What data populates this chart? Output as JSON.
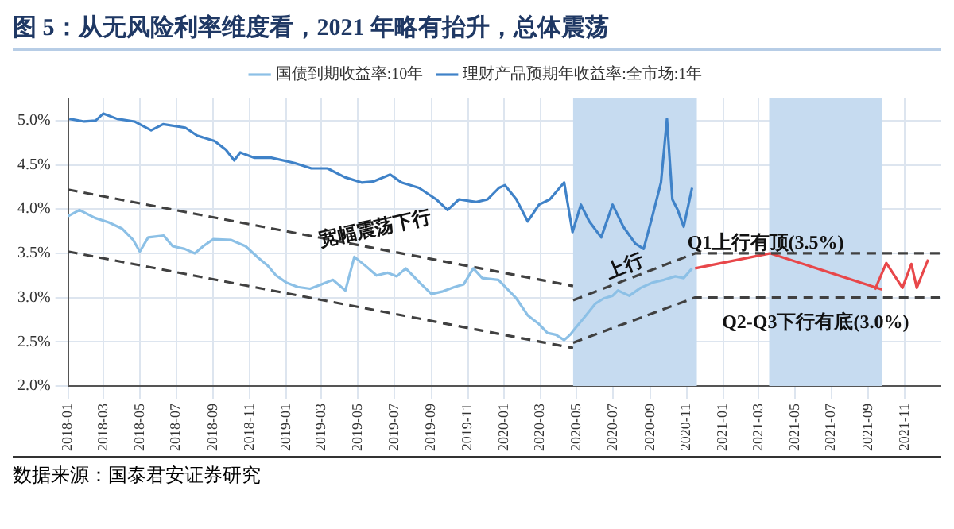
{
  "chart_data": {
    "type": "line",
    "title": "图 5：从无风险利率维度看，2021 年略有抬升，总体震荡",
    "xlim": [
      "2018-01-01",
      "2022-01-01"
    ],
    "xticks": [
      "2018-01",
      "2018-03",
      "2018-05",
      "2018-07",
      "2018-09",
      "2018-11",
      "2019-01",
      "2019-03",
      "2019-05",
      "2019-07",
      "2019-09",
      "2019-11",
      "2020-01",
      "2020-03",
      "2020-05",
      "2020-07",
      "2020-09",
      "2020-11",
      "2021-01",
      "2021-03",
      "2021-05",
      "2021-07",
      "2021-09",
      "2021-11"
    ],
    "ylim": [
      2,
      5.25
    ],
    "yticks": [
      {
        "value": 2,
        "label": "2.0%"
      },
      {
        "value": 2.5,
        "label": "2.5%"
      },
      {
        "value": 3,
        "label": "3.0%"
      },
      {
        "value": 3.5,
        "label": "3.5%"
      },
      {
        "value": 4,
        "label": "4.0%"
      },
      {
        "value": 4.5,
        "label": "4.5%"
      },
      {
        "value": 5,
        "label": "5.0%"
      }
    ],
    "series": [
      {
        "name": "国债到期收益率:10年",
        "color": "#8cc0e6",
        "x": [
          "2018-01-01",
          "2018-01-20",
          "2018-02-15",
          "2018-03-10",
          "2018-04-01",
          "2018-04-20",
          "2018-05-01",
          "2018-05-15",
          "2018-06-10",
          "2018-06-25",
          "2018-07-15",
          "2018-08-01",
          "2018-08-15",
          "2018-09-01",
          "2018-10-01",
          "2018-10-25",
          "2018-11-15",
          "2018-12-01",
          "2018-12-15",
          "2019-01-01",
          "2019-01-20",
          "2019-02-10",
          "2019-03-01",
          "2019-03-20",
          "2019-04-10",
          "2019-04-25",
          "2019-05-15",
          "2019-06-01",
          "2019-06-20",
          "2019-07-05",
          "2019-07-20",
          "2019-08-15",
          "2019-09-01",
          "2019-09-20",
          "2019-10-10",
          "2019-10-25",
          "2019-11-10",
          "2019-11-25",
          "2019-12-22",
          "2020-01-21",
          "2020-02-09",
          "2020-02-28",
          "2020-03-13",
          "2020-03-27",
          "2020-04-10",
          "2020-04-20",
          "2020-04-27",
          "2020-05-13",
          "2020-06-01",
          "2020-06-15",
          "2020-06-30",
          "2020-07-09",
          "2020-07-28",
          "2020-08-16",
          "2020-09-05",
          "2020-09-24",
          "2020-10-13",
          "2020-10-27",
          "2020-11-10"
        ],
        "values": [
          3.92,
          3.99,
          3.9,
          3.85,
          3.78,
          3.65,
          3.52,
          3.68,
          3.7,
          3.58,
          3.55,
          3.5,
          3.58,
          3.66,
          3.65,
          3.58,
          3.45,
          3.36,
          3.25,
          3.17,
          3.12,
          3.1,
          3.15,
          3.2,
          3.08,
          3.46,
          3.35,
          3.25,
          3.28,
          3.24,
          3.33,
          3.15,
          3.04,
          3.07,
          3.12,
          3.15,
          3.33,
          3.22,
          3.2,
          2.99,
          2.8,
          2.7,
          2.6,
          2.58,
          2.52,
          2.58,
          2.64,
          2.77,
          2.93,
          2.99,
          3.02,
          3.08,
          3.02,
          3.11,
          3.17,
          3.2,
          3.24,
          3.22,
          3.33
        ]
      },
      {
        "name": "理财产品预期年收益率:全市场:1年",
        "color": "#3f82c8",
        "x": [
          "2018-01-03",
          "2018-01-28",
          "2018-02-16",
          "2018-03-01",
          "2018-03-24",
          "2018-04-22",
          "2018-05-20",
          "2018-06-09",
          "2018-07-16",
          "2018-08-05",
          "2018-09-03",
          "2018-09-22",
          "2018-10-06",
          "2018-10-16",
          "2018-11-09",
          "2018-12-07",
          "2019-01-15",
          "2019-02-12",
          "2019-03-11",
          "2019-04-09",
          "2019-05-07",
          "2019-05-26",
          "2019-06-24",
          "2019-07-13",
          "2019-08-11",
          "2019-09-09",
          "2019-09-28",
          "2019-10-17",
          "2019-11-15",
          "2019-12-04",
          "2019-12-23",
          "2020-01-02",
          "2020-01-21",
          "2020-02-09",
          "2020-02-28",
          "2020-03-17",
          "2020-04-10",
          "2020-04-24",
          "2020-05-08",
          "2020-05-22",
          "2020-06-11",
          "2020-06-30",
          "2020-07-18",
          "2020-08-07",
          "2020-08-21",
          "2020-09-05",
          "2020-09-19",
          "2020-09-29",
          "2020-10-08",
          "2020-10-17",
          "2020-10-27",
          "2020-11-10"
        ],
        "values": [
          5.02,
          4.99,
          5.0,
          5.08,
          5.02,
          4.99,
          4.89,
          4.96,
          4.92,
          4.83,
          4.77,
          4.67,
          4.55,
          4.64,
          4.58,
          4.58,
          4.52,
          4.46,
          4.46,
          4.36,
          4.3,
          4.31,
          4.39,
          4.3,
          4.24,
          4.11,
          3.99,
          4.11,
          4.08,
          4.11,
          4.24,
          4.27,
          4.11,
          3.86,
          4.05,
          4.11,
          4.3,
          3.74,
          4.05,
          3.86,
          3.68,
          4.05,
          3.8,
          3.61,
          3.55,
          3.93,
          4.3,
          5.02,
          4.11,
          3.99,
          3.8,
          4.24
        ]
      },
      {
        "color": "#404040",
        "line_style": "dashed",
        "x": [
          "2018-01-01",
          "2020-04-25"
        ],
        "values": [
          4.22,
          3.13
        ]
      },
      {
        "color": "#404040",
        "line_style": "dashed",
        "x": [
          "2018-01-01",
          "2020-04-25"
        ],
        "values": [
          3.52,
          2.43
        ]
      },
      {
        "color": "#404040",
        "line_style": "dashed",
        "x": [
          "2020-04-25",
          "2020-11-15",
          "2022-01-01"
        ],
        "values": [
          2.97,
          3.5,
          3.5
        ]
      },
      {
        "color": "#404040",
        "line_style": "dashed",
        "x": [
          "2020-04-25",
          "2020-11-15",
          "2022-01-01"
        ],
        "values": [
          2.49,
          3.0,
          3.0
        ]
      },
      {
        "color": "#e8474a",
        "x": [
          "2020-11-15",
          "2021-03-21",
          "2021-09-24"
        ],
        "values": [
          3.33,
          3.5,
          3.09
        ]
      },
      {
        "color": "#e8474a",
        "x": [
          "2021-09-12",
          "2021-10-01",
          "2021-10-28",
          "2021-11-12",
          "2021-11-21",
          "2021-12-10"
        ],
        "values": [
          3.09,
          3.39,
          3.11,
          3.38,
          3.11,
          3.43
        ]
      }
    ],
    "bands": [
      {
        "axis": "x",
        "from": "2020-04-25",
        "to": "2020-11-18",
        "color": "#c6dbf0"
      },
      {
        "axis": "x",
        "from": "2021-03-19",
        "to": "2021-09-24",
        "color": "#c6dbf0"
      }
    ],
    "annotations": [
      "宽幅震荡下行",
      "上行",
      "Q1上行有顶(3.5%)",
      "Q2-Q3下行有底(3.0%)",
      "数据来源：国泰君安证券研究"
    ],
    "grid": true,
    "legend": "top",
    "marker": "none",
    "line_style": "solid"
  }
}
